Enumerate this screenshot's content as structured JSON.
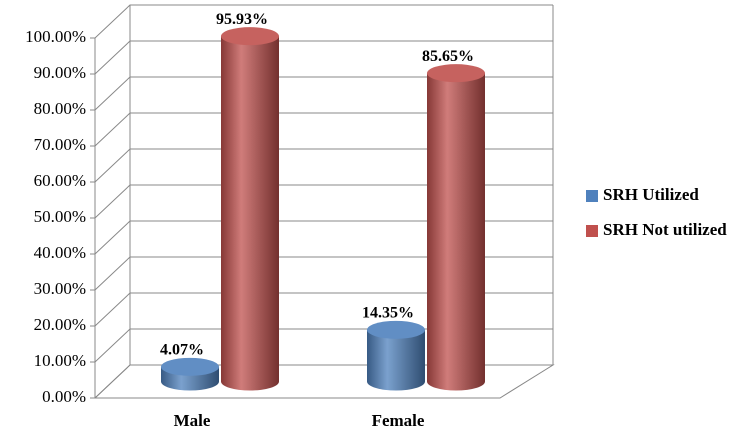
{
  "chart_data": {
    "type": "bar3d",
    "categories": [
      "Male",
      "Female"
    ],
    "series": [
      {
        "name": "SRH Utilized",
        "color": "#4f81bd",
        "values": [
          4.07,
          14.35
        ],
        "value_labels": [
          "4.07%",
          "14.35%"
        ]
      },
      {
        "name": "SRH Not utilized",
        "color": "#c0504d",
        "values": [
          95.93,
          85.65
        ],
        "value_labels": [
          "95.93%",
          "85.65%"
        ]
      }
    ],
    "ylim": [
      0,
      100
    ],
    "yticks": [
      {
        "value": 0,
        "label": "0.00%"
      },
      {
        "value": 10,
        "label": "10.00%"
      },
      {
        "value": 20,
        "label": "20.00%"
      },
      {
        "value": 30,
        "label": "30.00%"
      },
      {
        "value": 40,
        "label": "40.00%"
      },
      {
        "value": 50,
        "label": "50.00%"
      },
      {
        "value": 60,
        "label": "60.00%"
      },
      {
        "value": 70,
        "label": "70.00%"
      },
      {
        "value": 80,
        "label": "80.00%"
      },
      {
        "value": 90,
        "label": "90.00%"
      },
      {
        "value": 100,
        "label": "100.00%"
      }
    ],
    "grid": true,
    "legend": "right"
  }
}
